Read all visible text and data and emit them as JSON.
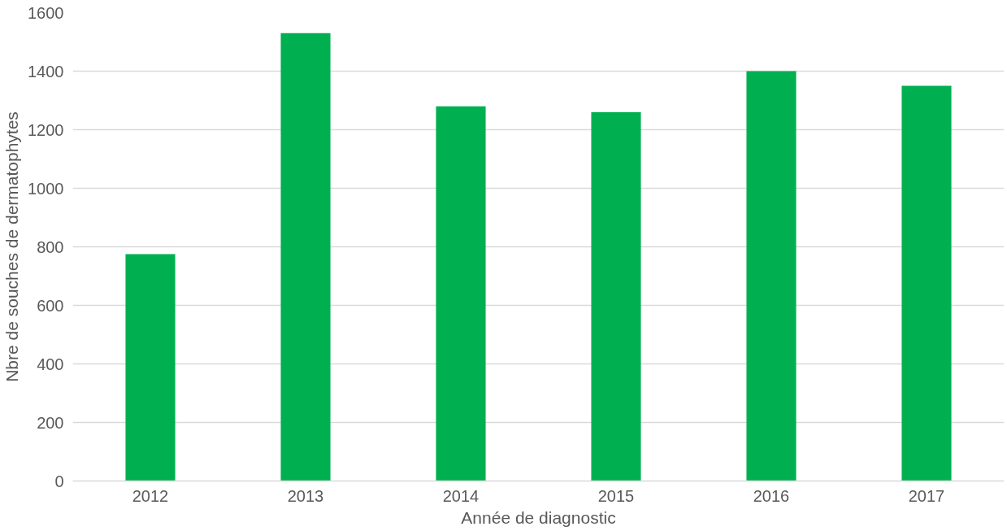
{
  "chart_data": {
    "type": "bar",
    "xlabel": "Année de diagnostic",
    "ylabel": "Nbre de souches de dermatophytes",
    "categories": [
      "2012",
      "2013",
      "2014",
      "2015",
      "2016",
      "2017"
    ],
    "values": [
      775,
      1530,
      1280,
      1260,
      1400,
      1350
    ],
    "color": "#00b050",
    "ylim": [
      0,
      1600
    ],
    "yticks": [
      0,
      200,
      400,
      600,
      800,
      1000,
      1200,
      1400,
      1600
    ],
    "grid": "y"
  }
}
